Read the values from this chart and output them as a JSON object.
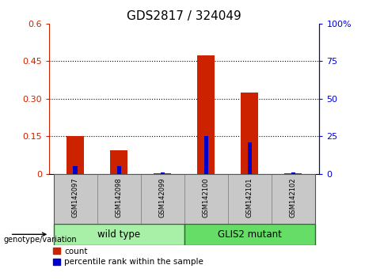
{
  "title": "GDS2817 / 324049",
  "samples": [
    "GSM142097",
    "GSM142098",
    "GSM142099",
    "GSM142100",
    "GSM142101",
    "GSM142102"
  ],
  "count_values": [
    0.15,
    0.095,
    0.003,
    0.475,
    0.325,
    0.003
  ],
  "pct_values_right": [
    5,
    5,
    1,
    25,
    21,
    1
  ],
  "left_yticks": [
    0,
    0.15,
    0.3,
    0.45,
    0.6
  ],
  "left_yticklabels": [
    "0",
    "0.15",
    "0.30",
    "0.45",
    "0.6"
  ],
  "right_yticks": [
    0,
    25,
    50,
    75,
    100
  ],
  "right_yticklabels": [
    "0",
    "25",
    "50",
    "75",
    "100%"
  ],
  "left_ylim": [
    0,
    0.6
  ],
  "right_ylim": [
    0,
    100
  ],
  "groups": [
    {
      "label": "wild type",
      "indices": [
        0,
        1,
        2
      ],
      "color": "#a8f0a8"
    },
    {
      "label": "GLIS2 mutant",
      "indices": [
        3,
        4,
        5
      ],
      "color": "#66dd66"
    }
  ],
  "genotype_label": "genotype/variation",
  "bar_color_count": "#cc2200",
  "bar_color_pct": "#0000cc",
  "count_bar_width": 0.4,
  "pct_bar_width": 0.1,
  "bg_color_plot": "#ffffff",
  "bg_color_sample": "#c8c8c8",
  "legend_count": "count",
  "legend_pct": "percentile rank within the sample",
  "title_fontsize": 11,
  "tick_fontsize": 8,
  "sample_fontsize": 6,
  "group_fontsize": 8.5,
  "legend_fontsize": 7.5
}
